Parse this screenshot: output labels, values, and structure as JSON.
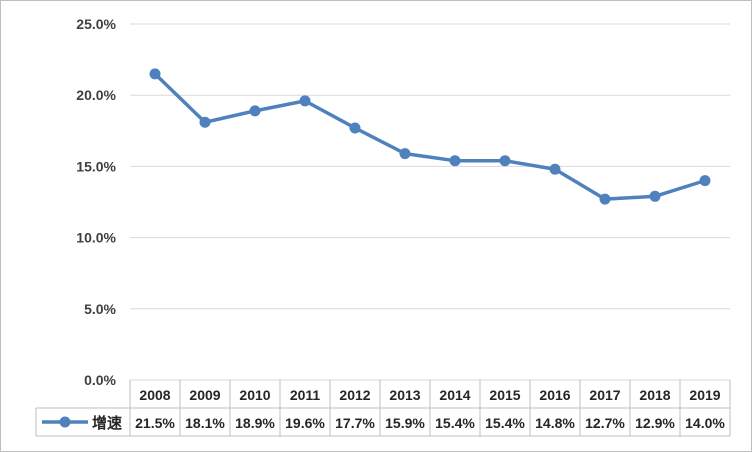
{
  "chart_data": {
    "type": "line",
    "title": "",
    "xlabel": "",
    "ylabel": "",
    "categories": [
      "2008",
      "2009",
      "2010",
      "2011",
      "2012",
      "2013",
      "2014",
      "2015",
      "2016",
      "2017",
      "2018",
      "2019"
    ],
    "series": [
      {
        "name": "增速",
        "values": [
          21.5,
          18.1,
          18.9,
          19.6,
          17.7,
          15.9,
          15.4,
          15.4,
          14.8,
          12.7,
          12.9,
          14.0
        ],
        "labels": [
          "21.5%",
          "18.1%",
          "18.9%",
          "19.6%",
          "17.7%",
          "15.9%",
          "15.4%",
          "15.4%",
          "14.8%",
          "12.7%",
          "12.9%",
          "14.0%"
        ],
        "color": "#4f81bd"
      }
    ],
    "ylim": [
      0,
      25
    ],
    "yticks": [
      0,
      5,
      10,
      15,
      20,
      25
    ],
    "ytick_labels": [
      "0.0%",
      "5.0%",
      "10.0%",
      "15.0%",
      "20.0%",
      "25.0%"
    ],
    "grid": true,
    "legend_placement": "data-table",
    "data_table": true
  },
  "colors": {
    "series": "#4f81bd",
    "grid": "#d9d9d9",
    "border": "#bfbfbf",
    "text": "#404040"
  }
}
